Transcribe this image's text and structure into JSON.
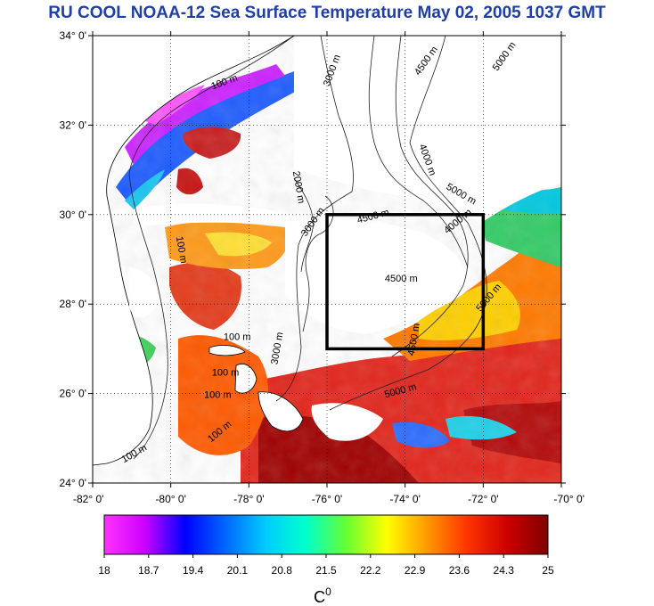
{
  "title": "RU COOL  NOAA-12 Sea Surface Temperature May 02, 2005 1037 GMT",
  "colors": {
    "title": "#1f3fa8",
    "land": "#ffffff",
    "coast": "#000000",
    "box": "#000000"
  },
  "map": {
    "lon_range": [
      -82,
      -70
    ],
    "lat_range": [
      24,
      34
    ],
    "lat_ticks": [
      {
        "value": 34,
        "label": "34° 0'"
      },
      {
        "value": 32,
        "label": "32° 0'"
      },
      {
        "value": 30,
        "label": "30° 0'"
      },
      {
        "value": 28,
        "label": "28° 0'"
      },
      {
        "value": 26,
        "label": "26° 0'"
      },
      {
        "value": 24,
        "label": "24° 0'"
      }
    ],
    "lon_ticks": [
      {
        "value": -82,
        "label": "-82° 0'"
      },
      {
        "value": -80,
        "label": "-80° 0'"
      },
      {
        "value": -78,
        "label": "-78° 0'"
      },
      {
        "value": -76,
        "label": "-76° 0'"
      },
      {
        "value": -74,
        "label": "-74° 0'"
      },
      {
        "value": -72,
        "label": "-72° 0'"
      },
      {
        "value": -70,
        "label": "-70° 0'"
      }
    ],
    "study_box": {
      "lon": [
        -76,
        -72
      ],
      "lat": [
        27,
        30
      ]
    },
    "grid": "dotted"
  },
  "contour_labels": [
    {
      "text": "100 m",
      "lon": -78.6,
      "lat": 32.9,
      "rot": -20
    },
    {
      "text": "3000 m",
      "lon": -75.8,
      "lat": 33.2,
      "rot": -70
    },
    {
      "text": "4500 m",
      "lon": -73.4,
      "lat": 33.4,
      "rot": -55
    },
    {
      "text": "5000 m",
      "lon": -71.4,
      "lat": 33.5,
      "rot": -55
    },
    {
      "text": "4000 m",
      "lon": -73.5,
      "lat": 31.2,
      "rot": 70
    },
    {
      "text": "5000 m",
      "lon": -72.6,
      "lat": 30.4,
      "rot": 30
    },
    {
      "text": "4000 m",
      "lon": -72.6,
      "lat": 29.8,
      "rot": -40
    },
    {
      "text": "4500 m",
      "lon": -74.8,
      "lat": 29.9,
      "rot": -15
    },
    {
      "text": "2000 m",
      "lon": -76.8,
      "lat": 30.6,
      "rot": 80
    },
    {
      "text": "3000 m",
      "lon": -76.3,
      "lat": 29.8,
      "rot": -55
    },
    {
      "text": "100 m",
      "lon": -79.8,
      "lat": 29.2,
      "rot": 80
    },
    {
      "text": "4500 m",
      "lon": -74.1,
      "lat": 28.5,
      "rot": 0
    },
    {
      "text": "5000 m",
      "lon": -71.8,
      "lat": 28.1,
      "rot": -50
    },
    {
      "text": "4500 m",
      "lon": -73.7,
      "lat": 27.2,
      "rot": -80
    },
    {
      "text": "3000 m",
      "lon": -77.2,
      "lat": 27.0,
      "rot": -80
    },
    {
      "text": "100 m",
      "lon": -78.3,
      "lat": 27.2,
      "rot": 0
    },
    {
      "text": "100 m",
      "lon": -78.6,
      "lat": 26.4,
      "rot": 0
    },
    {
      "text": "100 m",
      "lon": -78.8,
      "lat": 25.9,
      "rot": 0
    },
    {
      "text": "100 m",
      "lon": -78.7,
      "lat": 25.1,
      "rot": -40
    },
    {
      "text": "100 m",
      "lon": -80.9,
      "lat": 24.6,
      "rot": -30
    },
    {
      "text": "5000 m",
      "lon": -74.1,
      "lat": 26.0,
      "rot": -15
    }
  ],
  "colorbar": {
    "min": 18,
    "max": 25,
    "tick_labels": [
      "18",
      "18.7",
      "19.4",
      "20.1",
      "20.8",
      "21.5",
      "22.2",
      "22.9",
      "23.6",
      "24.3",
      "25"
    ],
    "title_base": "C",
    "title_super": "0",
    "stops": [
      "#ff33ff",
      "#cc00ff",
      "#0000ff",
      "#0066ff",
      "#00ccff",
      "#00ffcc",
      "#66ff33",
      "#ffff00",
      "#ff9900",
      "#ff3300",
      "#cc0000",
      "#800000"
    ]
  }
}
